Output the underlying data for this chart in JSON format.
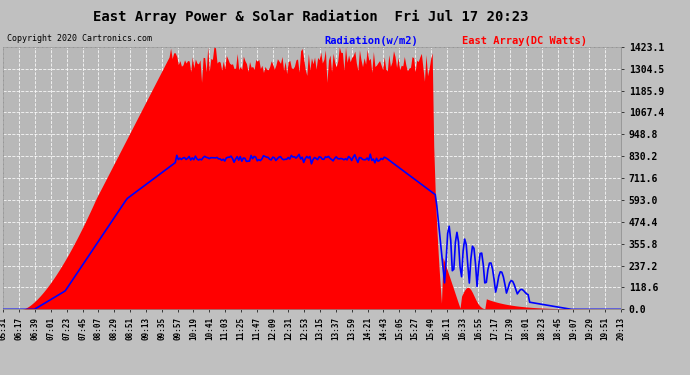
{
  "title": "East Array Power & Solar Radiation  Fri Jul 17 20:23",
  "copyright": "Copyright 2020 Cartronics.com",
  "legend_radiation": "Radiation(w/m2)",
  "legend_east": "East Array(DC Watts)",
  "radiation_color": "#ff0000",
  "east_color": "#0000ff",
  "y_ticks": [
    0.0,
    118.6,
    237.2,
    355.8,
    474.4,
    593.0,
    711.6,
    830.2,
    948.8,
    1067.4,
    1185.9,
    1304.5,
    1423.1
  ],
  "ymax": 1423.1,
  "ymin": 0.0,
  "fig_bg": "#c0c0c0",
  "plot_bg": "#b8b8b8",
  "x_labels": [
    "05:31",
    "06:17",
    "06:39",
    "07:01",
    "07:23",
    "07:45",
    "08:07",
    "08:29",
    "08:51",
    "09:13",
    "09:35",
    "09:57",
    "10:19",
    "10:41",
    "11:03",
    "11:25",
    "11:47",
    "12:09",
    "12:31",
    "12:53",
    "13:15",
    "13:37",
    "13:59",
    "14:21",
    "14:43",
    "15:05",
    "15:27",
    "15:49",
    "16:11",
    "16:33",
    "16:55",
    "17:17",
    "17:39",
    "18:01",
    "18:23",
    "18:45",
    "19:07",
    "19:29",
    "19:51",
    "20:13"
  ]
}
